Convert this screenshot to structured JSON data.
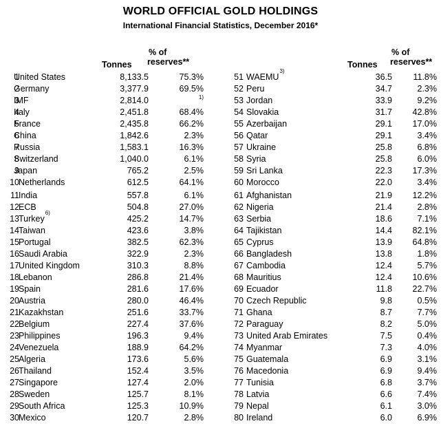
{
  "title": "WORLD OFFICIAL GOLD HOLDINGS",
  "subtitle": "International Financial Statistics, December 2016*",
  "headers": {
    "tonnes": "Tonnes",
    "pct_line1": "% of",
    "pct_line2": "reserves**"
  },
  "left_rows": [
    {
      "rank": "1",
      "name": "United States",
      "note": "",
      "tonnes": "8,133.5",
      "pct": "75.3%"
    },
    {
      "rank": "2",
      "name": "Germany",
      "note": "",
      "tonnes": "3,377.9",
      "pct": "69.5%"
    },
    {
      "rank": "3",
      "name": "IMF",
      "note": "",
      "tonnes": "2,814.0",
      "pct": "1)"
    },
    {
      "rank": "4",
      "name": "Italy",
      "note": "",
      "tonnes": "2,451.8",
      "pct": "68.4%"
    },
    {
      "rank": "5",
      "name": "France",
      "note": "",
      "tonnes": "2,435.8",
      "pct": "66.2%"
    },
    {
      "rank": "6",
      "name": "China",
      "note": "",
      "tonnes": "1,842.6",
      "pct": "2.3%"
    },
    {
      "rank": "7",
      "name": "Russia",
      "note": "",
      "tonnes": "1,583.1",
      "pct": "16.3%"
    },
    {
      "rank": "8",
      "name": "Switzerland",
      "note": "",
      "tonnes": "1,040.0",
      "pct": "6.1%"
    },
    {
      "rank": "9",
      "name": "Japan",
      "note": "",
      "tonnes": "765.2",
      "pct": "2.5%"
    },
    {
      "rank": "10",
      "name": "Netherlands",
      "note": "",
      "tonnes": "612.5",
      "pct": "64.1%"
    },
    {
      "rank": "11",
      "name": "India",
      "note": "",
      "tonnes": "557.8",
      "pct": "6.1%"
    },
    {
      "rank": "12",
      "name": "ECB",
      "note": "",
      "tonnes": "504.8",
      "pct": "27.0%"
    },
    {
      "rank": "13",
      "name": "Turkey",
      "note": "6)",
      "tonnes": "425.2",
      "pct": "14.7%"
    },
    {
      "rank": "14",
      "name": "Taiwan",
      "note": "",
      "tonnes": "423.6",
      "pct": "3.8%"
    },
    {
      "rank": "15",
      "name": "Portugal",
      "note": "",
      "tonnes": "382.5",
      "pct": "62.3%"
    },
    {
      "rank": "16",
      "name": "Saudi Arabia",
      "note": "",
      "tonnes": "322.9",
      "pct": "2.3%"
    },
    {
      "rank": "17",
      "name": "United Kingdom",
      "note": "",
      "tonnes": "310.3",
      "pct": "8.8%"
    },
    {
      "rank": "18",
      "name": "Lebanon",
      "note": "",
      "tonnes": "286.8",
      "pct": "21.4%"
    },
    {
      "rank": "19",
      "name": "Spain",
      "note": "",
      "tonnes": "281.6",
      "pct": "17.6%"
    },
    {
      "rank": "20",
      "name": "Austria",
      "note": "",
      "tonnes": "280.0",
      "pct": "46.4%"
    },
    {
      "rank": "21",
      "name": "Kazakhstan",
      "note": "",
      "tonnes": "251.6",
      "pct": "33.7%"
    },
    {
      "rank": "22",
      "name": "Belgium",
      "note": "",
      "tonnes": "227.4",
      "pct": "37.6%"
    },
    {
      "rank": "23",
      "name": "Philippines",
      "note": "",
      "tonnes": "196.3",
      "pct": "9.4%"
    },
    {
      "rank": "24",
      "name": "Venezuela",
      "note": "",
      "tonnes": "188.9",
      "pct": "64.2%"
    },
    {
      "rank": "25",
      "name": "Algeria",
      "note": "",
      "tonnes": "173.6",
      "pct": "5.6%"
    },
    {
      "rank": "26",
      "name": "Thailand",
      "note": "",
      "tonnes": "152.4",
      "pct": "3.5%"
    },
    {
      "rank": "27",
      "name": "Singapore",
      "note": "",
      "tonnes": "127.4",
      "pct": "2.0%"
    },
    {
      "rank": "28",
      "name": "Sweden",
      "note": "",
      "tonnes": "125.7",
      "pct": "8.1%"
    },
    {
      "rank": "29",
      "name": "South Africa",
      "note": "",
      "tonnes": "125.3",
      "pct": "10.9%"
    },
    {
      "rank": "30",
      "name": "Mexico",
      "note": "",
      "tonnes": "120.7",
      "pct": "2.8%"
    }
  ],
  "right_rows": [
    {
      "rank": "51",
      "name": "WAEMU",
      "note": "3)",
      "tonnes": "36.5",
      "pct": "11.8%"
    },
    {
      "rank": "52",
      "name": "Peru",
      "note": "",
      "tonnes": "34.7",
      "pct": "2.3%"
    },
    {
      "rank": "53",
      "name": "Jordan",
      "note": "",
      "tonnes": "33.9",
      "pct": "9.2%"
    },
    {
      "rank": "54",
      "name": "Slovakia",
      "note": "",
      "tonnes": "31.7",
      "pct": "42.8%"
    },
    {
      "rank": "55",
      "name": "Azerbaijan",
      "note": "",
      "tonnes": "29.1",
      "pct": "17.0%"
    },
    {
      "rank": "56",
      "name": "Qatar",
      "note": "",
      "tonnes": "29.1",
      "pct": "3.4%"
    },
    {
      "rank": "57",
      "name": "Ukraine",
      "note": "",
      "tonnes": "25.8",
      "pct": "6.8%"
    },
    {
      "rank": "58",
      "name": "Syria",
      "note": "",
      "tonnes": "25.8",
      "pct": "6.0%"
    },
    {
      "rank": "59",
      "name": "Sri Lanka",
      "note": "",
      "tonnes": "22.3",
      "pct": "17.3%"
    },
    {
      "rank": "60",
      "name": "Morocco",
      "note": "",
      "tonnes": "22.0",
      "pct": "3.4%"
    },
    {
      "rank": "61",
      "name": "Afghanistan",
      "note": "",
      "tonnes": "21.9",
      "pct": "12.2%"
    },
    {
      "rank": "62",
      "name": "Nigeria",
      "note": "",
      "tonnes": "21.4",
      "pct": "2.8%"
    },
    {
      "rank": "63",
      "name": "Serbia",
      "note": "",
      "tonnes": "18.6",
      "pct": "7.1%"
    },
    {
      "rank": "64",
      "name": "Tajikistan",
      "note": "",
      "tonnes": "14.4",
      "pct": "82.1%"
    },
    {
      "rank": "65",
      "name": "Cyprus",
      "note": "",
      "tonnes": "13.9",
      "pct": "64.8%"
    },
    {
      "rank": "66",
      "name": "Bangladesh",
      "note": "",
      "tonnes": "13.8",
      "pct": "1.8%"
    },
    {
      "rank": "67",
      "name": "Cambodia",
      "note": "",
      "tonnes": "12.4",
      "pct": "5.7%"
    },
    {
      "rank": "68",
      "name": "Mauritius",
      "note": "",
      "tonnes": "12.4",
      "pct": "10.6%"
    },
    {
      "rank": "69",
      "name": "Ecuador",
      "note": "",
      "tonnes": "11.8",
      "pct": "22.7%"
    },
    {
      "rank": "70",
      "name": "Czech Republic",
      "note": "",
      "tonnes": "9.8",
      "pct": "0.5%"
    },
    {
      "rank": "71",
      "name": "Ghana",
      "note": "",
      "tonnes": "8.7",
      "pct": "7.7%"
    },
    {
      "rank": "72",
      "name": "Paraguay",
      "note": "",
      "tonnes": "8.2",
      "pct": "5.0%"
    },
    {
      "rank": "73",
      "name": "United Arab Emirates",
      "note": "",
      "tonnes": "7.5",
      "pct": "0.4%"
    },
    {
      "rank": "74",
      "name": "Myanmar",
      "note": "",
      "tonnes": "7.3",
      "pct": "4.0%"
    },
    {
      "rank": "75",
      "name": "Guatemala",
      "note": "",
      "tonnes": "6.9",
      "pct": "3.1%"
    },
    {
      "rank": "76",
      "name": "Macedonia",
      "note": "",
      "tonnes": "6.9",
      "pct": "9.4%"
    },
    {
      "rank": "77",
      "name": "Tunisia",
      "note": "",
      "tonnes": "6.8",
      "pct": "3.7%"
    },
    {
      "rank": "78",
      "name": "Latvia",
      "note": "",
      "tonnes": "6.6",
      "pct": "7.4%"
    },
    {
      "rank": "79",
      "name": "Nepal",
      "note": "",
      "tonnes": "6.1",
      "pct": "3.0%"
    },
    {
      "rank": "80",
      "name": "Ireland",
      "note": "",
      "tonnes": "6.0",
      "pct": "6.9%"
    }
  ]
}
